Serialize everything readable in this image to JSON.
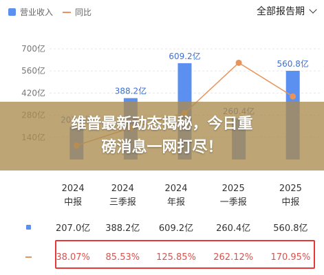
{
  "legend": {
    "revenue": "营业收入",
    "yoy": "同比"
  },
  "period_select": {
    "label": "全部报告期"
  },
  "colors": {
    "bar": "#5b8ff0",
    "line": "#e8935a",
    "highlight": "#e53935"
  },
  "banner": {
    "line1": "维普最新动态揭秘，今日重",
    "line2": "磅消息一网打尽！"
  },
  "chart_data": {
    "type": "bar",
    "categories": [
      "2024 中报",
      "2024 三季报",
      "2024 年报",
      "2025 一季报",
      "2025 中报"
    ],
    "series": [
      {
        "name": "营业收入",
        "type": "bar",
        "values": [
          207.0,
          388.2,
          609.2,
          260.4,
          560.8
        ],
        "labels": [
          "207.0亿",
          "388.2亿",
          "609.2亿",
          "260.4亿",
          "560.8亿"
        ]
      },
      {
        "name": "同比",
        "type": "line",
        "values": [
          38.07,
          85.53,
          125.85,
          262.12,
          170.95
        ]
      }
    ],
    "yticks": [
      "700亿",
      "560亿",
      "420亿",
      "280亿",
      "140亿"
    ],
    "ytick_values": [
      700,
      560,
      420,
      280,
      140
    ],
    "ylim": [
      0,
      700
    ],
    "y2lim": [
      0,
      300
    ],
    "grid": true,
    "legend_position": "top-left"
  },
  "table": {
    "headers": [
      {
        "year": "2024",
        "period": "中报"
      },
      {
        "year": "2024",
        "period": "三季报"
      },
      {
        "year": "2024",
        "period": "年报"
      },
      {
        "year": "2025",
        "period": "一季报"
      },
      {
        "year": "2025",
        "period": "中报"
      }
    ],
    "revenue": [
      "207.0亿",
      "388.2亿",
      "609.2亿",
      "260.4亿",
      "560.8亿"
    ],
    "yoy": [
      "38.07%",
      "85.53%",
      "125.85%",
      "262.12%",
      "170.95%"
    ]
  }
}
